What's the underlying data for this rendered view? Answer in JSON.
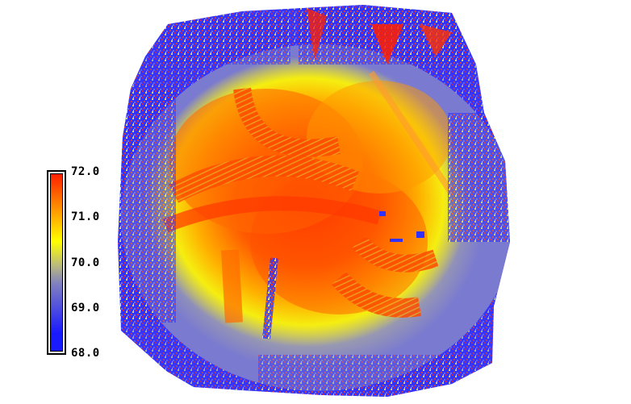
{
  "legend": {
    "ticks": [
      {
        "label": "72.0",
        "value": 72.0
      },
      {
        "label": "71.0",
        "value": 71.0
      },
      {
        "label": "70.0",
        "value": 70.0
      },
      {
        "label": "69.0",
        "value": 69.0
      },
      {
        "label": "68.0",
        "value": 68.0
      }
    ],
    "min": 68.0,
    "max": 72.0,
    "colors": {
      "low": "#1a1aff",
      "mid_low": "#8080c0",
      "mid": "#b8b880",
      "mid_high": "#ffff00",
      "high": "#ff2000"
    }
  },
  "map": {
    "background_color": "#ffffff"
  }
}
